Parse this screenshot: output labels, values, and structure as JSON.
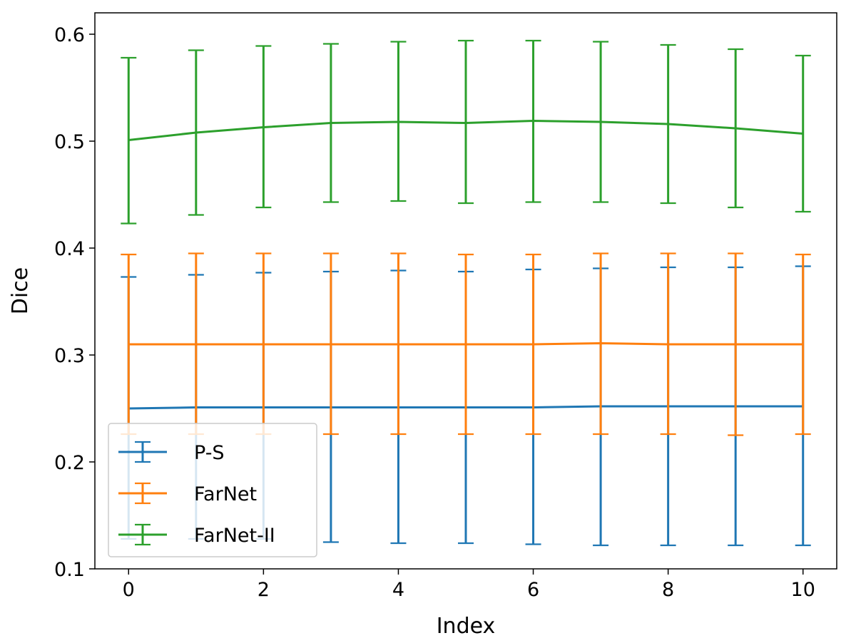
{
  "chart_data": {
    "type": "line",
    "subtype": "errorbar",
    "title": "",
    "xlabel": "Index",
    "ylabel": "Dice",
    "xlim": [
      -0.5,
      10.5
    ],
    "ylim": [
      0.1,
      0.62
    ],
    "x": [
      0,
      1,
      2,
      3,
      4,
      5,
      6,
      7,
      8,
      9,
      10
    ],
    "xticks": [
      0,
      2,
      4,
      6,
      8,
      10
    ],
    "xtick_labels": [
      "0",
      "2",
      "4",
      "6",
      "8",
      "10"
    ],
    "yticks": [
      0.1,
      0.2,
      0.3,
      0.4,
      0.5,
      0.6
    ],
    "ytick_labels": [
      "0.1",
      "0.2",
      "0.3",
      "0.4",
      "0.5",
      "0.6"
    ],
    "grid": false,
    "legend": "bottom-left",
    "series": [
      {
        "name": "P-S",
        "color": "#1f77b4",
        "values": [
          0.25,
          0.251,
          0.251,
          0.251,
          0.251,
          0.251,
          0.251,
          0.252,
          0.252,
          0.252,
          0.252
        ],
        "err_lower": [
          0.128,
          0.128,
          0.128,
          0.125,
          0.124,
          0.124,
          0.123,
          0.122,
          0.122,
          0.122,
          0.122
        ],
        "err_upper": [
          0.373,
          0.375,
          0.377,
          0.378,
          0.379,
          0.378,
          0.38,
          0.381,
          0.382,
          0.382,
          0.383
        ]
      },
      {
        "name": "FarNet",
        "color": "#ff7f0e",
        "values": [
          0.31,
          0.31,
          0.31,
          0.31,
          0.31,
          0.31,
          0.31,
          0.311,
          0.31,
          0.31,
          0.31
        ],
        "err_lower": [
          0.226,
          0.226,
          0.226,
          0.226,
          0.226,
          0.226,
          0.226,
          0.226,
          0.226,
          0.225,
          0.226
        ],
        "err_upper": [
          0.394,
          0.395,
          0.395,
          0.395,
          0.395,
          0.394,
          0.394,
          0.395,
          0.395,
          0.395,
          0.394
        ]
      },
      {
        "name": "FarNet-II",
        "color": "#2ca02c",
        "values": [
          0.501,
          0.508,
          0.513,
          0.517,
          0.518,
          0.517,
          0.519,
          0.518,
          0.516,
          0.512,
          0.507
        ],
        "err_lower": [
          0.423,
          0.431,
          0.438,
          0.443,
          0.444,
          0.442,
          0.443,
          0.443,
          0.442,
          0.438,
          0.434
        ],
        "err_upper": [
          0.578,
          0.585,
          0.589,
          0.591,
          0.593,
          0.594,
          0.594,
          0.593,
          0.59,
          0.586,
          0.58
        ]
      }
    ]
  }
}
